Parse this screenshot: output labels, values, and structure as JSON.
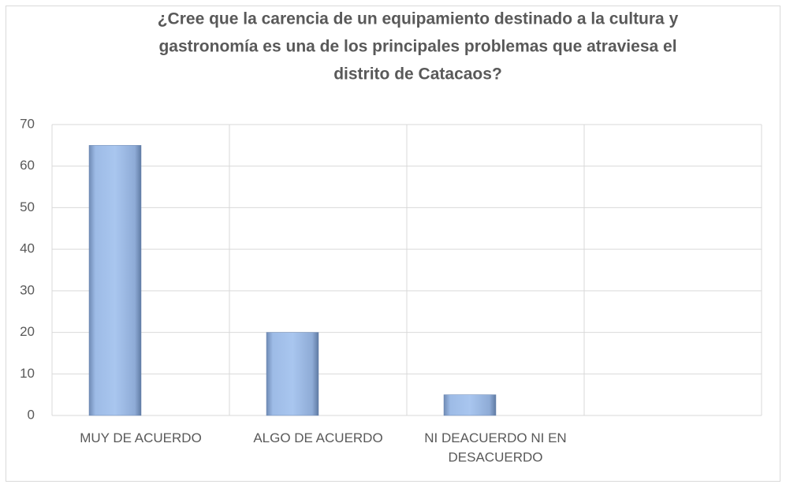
{
  "chart_data": {
    "type": "bar",
    "title": [
      "¿Cree que la carencia de un equipamiento destinado a la cultura y",
      "gastronomía es una de los principales problemas que atraviesa el",
      "distrito de Catacaos?"
    ],
    "categories": [
      "MUY DE ACUERDO",
      "ALGO DE ACUERDO",
      "NI DEACUERDO NI EN DESACUERDO",
      null
    ],
    "values": [
      65,
      20,
      5,
      null
    ],
    "color": "#93b3e0",
    "ylim": [
      0,
      70
    ],
    "yticks": [
      0,
      10,
      20,
      30,
      40,
      50,
      60,
      70
    ],
    "grid": true
  }
}
